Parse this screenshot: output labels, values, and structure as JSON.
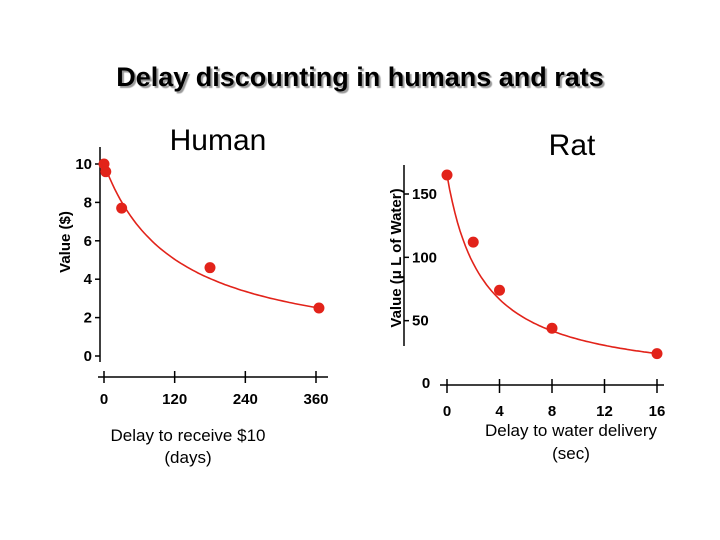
{
  "title": "Delay discounting in humans and rats",
  "chart_data": [
    {
      "type": "scatter",
      "subtitle": "Human",
      "xlabel_line1": "Delay to receive $10",
      "xlabel_line2": "(days)",
      "ylabel": "Value ($)",
      "xlim": [
        0,
        360
      ],
      "ylim": [
        0,
        10
      ],
      "xticks": [
        0,
        120,
        240,
        360
      ],
      "yticks": [
        0,
        2,
        4,
        6,
        8,
        10
      ],
      "points": [
        {
          "x": 0,
          "y": 10.0
        },
        {
          "x": 3,
          "y": 9.6
        },
        {
          "x": 30,
          "y": 7.7
        },
        {
          "x": 180,
          "y": 4.6
        },
        {
          "x": 365,
          "y": 2.5
        }
      ],
      "fit": "hyperbolic",
      "color": "#e2231a",
      "grid": false
    },
    {
      "type": "scatter",
      "subtitle": "Rat",
      "xlabel_line1": "Delay to water delivery",
      "xlabel_line2": "(sec)",
      "ylabel": "Value (μ L of Water)",
      "xlim": [
        0,
        16
      ],
      "ylim": [
        0,
        165
      ],
      "xticks": [
        0,
        4,
        8,
        12,
        16
      ],
      "yticks": [
        50,
        100,
        150
      ],
      "extra_tick_label": "0",
      "points": [
        {
          "x": 0,
          "y": 165
        },
        {
          "x": 2,
          "y": 112
        },
        {
          "x": 4,
          "y": 74
        },
        {
          "x": 8,
          "y": 44
        },
        {
          "x": 16,
          "y": 24
        }
      ],
      "fit": "hyperbolic",
      "color": "#e2231a",
      "grid": false
    }
  ]
}
